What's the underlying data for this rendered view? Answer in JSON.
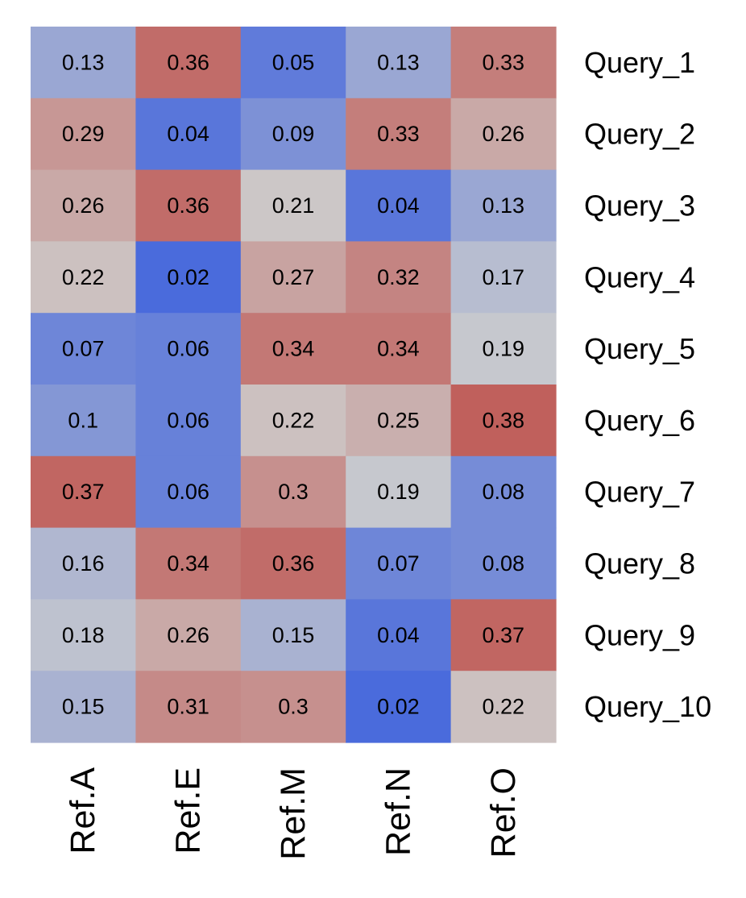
{
  "chart_data": {
    "type": "heatmap",
    "columns": [
      "Ref.A",
      "Ref.E",
      "Ref.M",
      "Ref.N",
      "Ref.O"
    ],
    "rows": [
      "Query_1",
      "Query_2",
      "Query_3",
      "Query_4",
      "Query_5",
      "Query_6",
      "Query_7",
      "Query_8",
      "Query_9",
      "Query_10"
    ],
    "values": [
      [
        0.13,
        0.36,
        0.05,
        0.13,
        0.33
      ],
      [
        0.29,
        0.04,
        0.09,
        0.33,
        0.26
      ],
      [
        0.26,
        0.36,
        0.21,
        0.04,
        0.13
      ],
      [
        0.22,
        0.02,
        0.27,
        0.32,
        0.17
      ],
      [
        0.07,
        0.06,
        0.34,
        0.34,
        0.19
      ],
      [
        0.1,
        0.06,
        0.22,
        0.25,
        0.38
      ],
      [
        0.37,
        0.06,
        0.3,
        0.19,
        0.08
      ],
      [
        0.16,
        0.34,
        0.36,
        0.07,
        0.08
      ],
      [
        0.18,
        0.26,
        0.15,
        0.04,
        0.37
      ],
      [
        0.15,
        0.31,
        0.3,
        0.02,
        0.22
      ]
    ],
    "colormap": {
      "low": "#4a6bdc",
      "mid": "#cdcdcd",
      "high": "#c0605c"
    },
    "title": "",
    "xlabel": "",
    "ylabel": "",
    "legend": "none"
  }
}
